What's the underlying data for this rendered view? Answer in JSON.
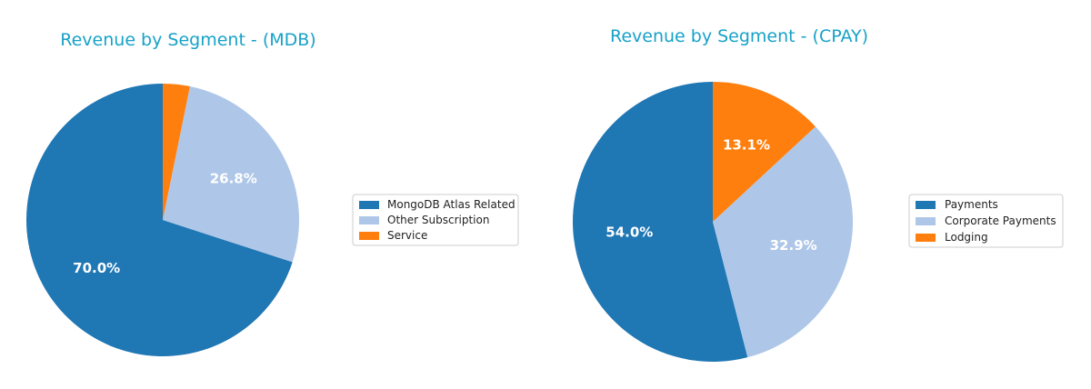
{
  "chart_data": [
    {
      "type": "pie",
      "title": "Revenue by Segment - (MDB)",
      "categories": [
        "MongoDB Atlas Related",
        "Other Subscription",
        "Service"
      ],
      "values": [
        70.0,
        26.8,
        3.2
      ],
      "labels": [
        "70.0%",
        "26.8%",
        ""
      ],
      "colors": [
        "#1f77b4",
        "#aec7e8",
        "#ff7f0e"
      ],
      "legend": "right"
    },
    {
      "type": "pie",
      "title": "Revenue by Segment - (CPAY)",
      "categories": [
        "Payments",
        "Corporate Payments",
        "Lodging"
      ],
      "values": [
        54.0,
        32.9,
        13.1
      ],
      "labels": [
        "54.0%",
        "32.9%",
        "13.1%"
      ],
      "colors": [
        "#1f77b4",
        "#aec7e8",
        "#ff7f0e"
      ],
      "legend": "right"
    }
  ]
}
